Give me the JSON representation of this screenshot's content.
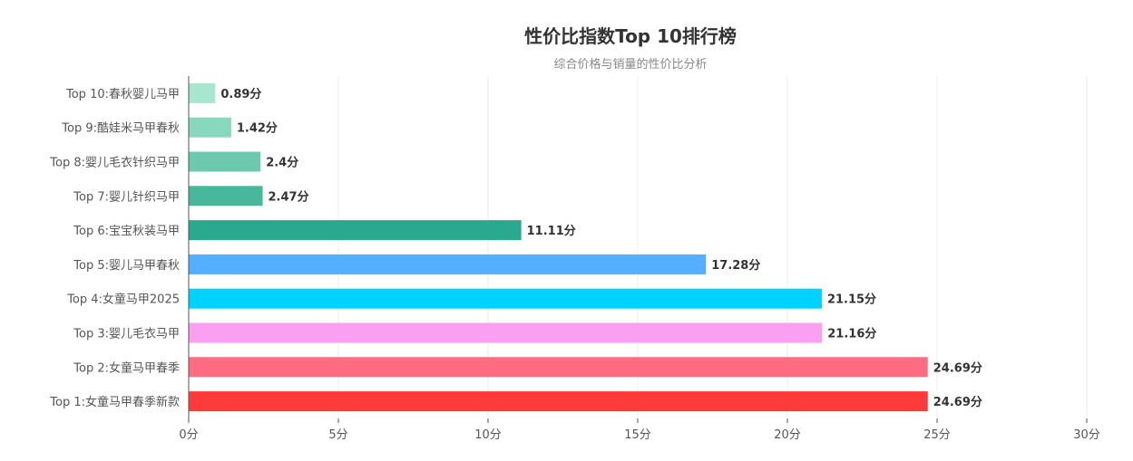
{
  "chart_data": {
    "type": "bar",
    "orientation": "horizontal",
    "title": "性价比指数Top 10排行榜",
    "subtitle": "综合价格与销量的性价比分析",
    "categories": [
      "Top 10:春秋婴儿马甲",
      "Top 9:酷娃米马甲春秋",
      "Top 8:婴儿毛衣针织马甲",
      "Top 7:婴儿针织马甲",
      "Top 6:宝宝秋装马甲",
      "Top 5:婴儿马甲春秋",
      "Top 4:女童马甲2025",
      "Top 3:婴儿毛衣马甲",
      "Top 2:女童马甲春季",
      "Top 1:女童马甲春季新款"
    ],
    "values": [
      0.89,
      1.42,
      2.4,
      2.47,
      11.11,
      17.28,
      21.15,
      21.16,
      24.69,
      24.69
    ],
    "value_labels": [
      "0.89分",
      "1.42分",
      "2.4分",
      "2.47分",
      "11.11分",
      "17.28分",
      "21.15分",
      "21.16分",
      "24.69分",
      "24.69分"
    ],
    "colors": [
      "#a8e6cf",
      "#88d8bd",
      "#6cc9ad",
      "#48b89d",
      "#2aa98f",
      "#55aeff",
      "#00d2ff",
      "#f9a1f0",
      "#ff6b81",
      "#ff3a3a"
    ],
    "xlim": [
      0,
      30
    ],
    "xticks": [
      0,
      5,
      10,
      15,
      20,
      25,
      30
    ],
    "xtick_labels": [
      "0分",
      "5分",
      "10分",
      "15分",
      "20分",
      "25分",
      "30分"
    ],
    "grid": "vertical",
    "legend": "none"
  }
}
